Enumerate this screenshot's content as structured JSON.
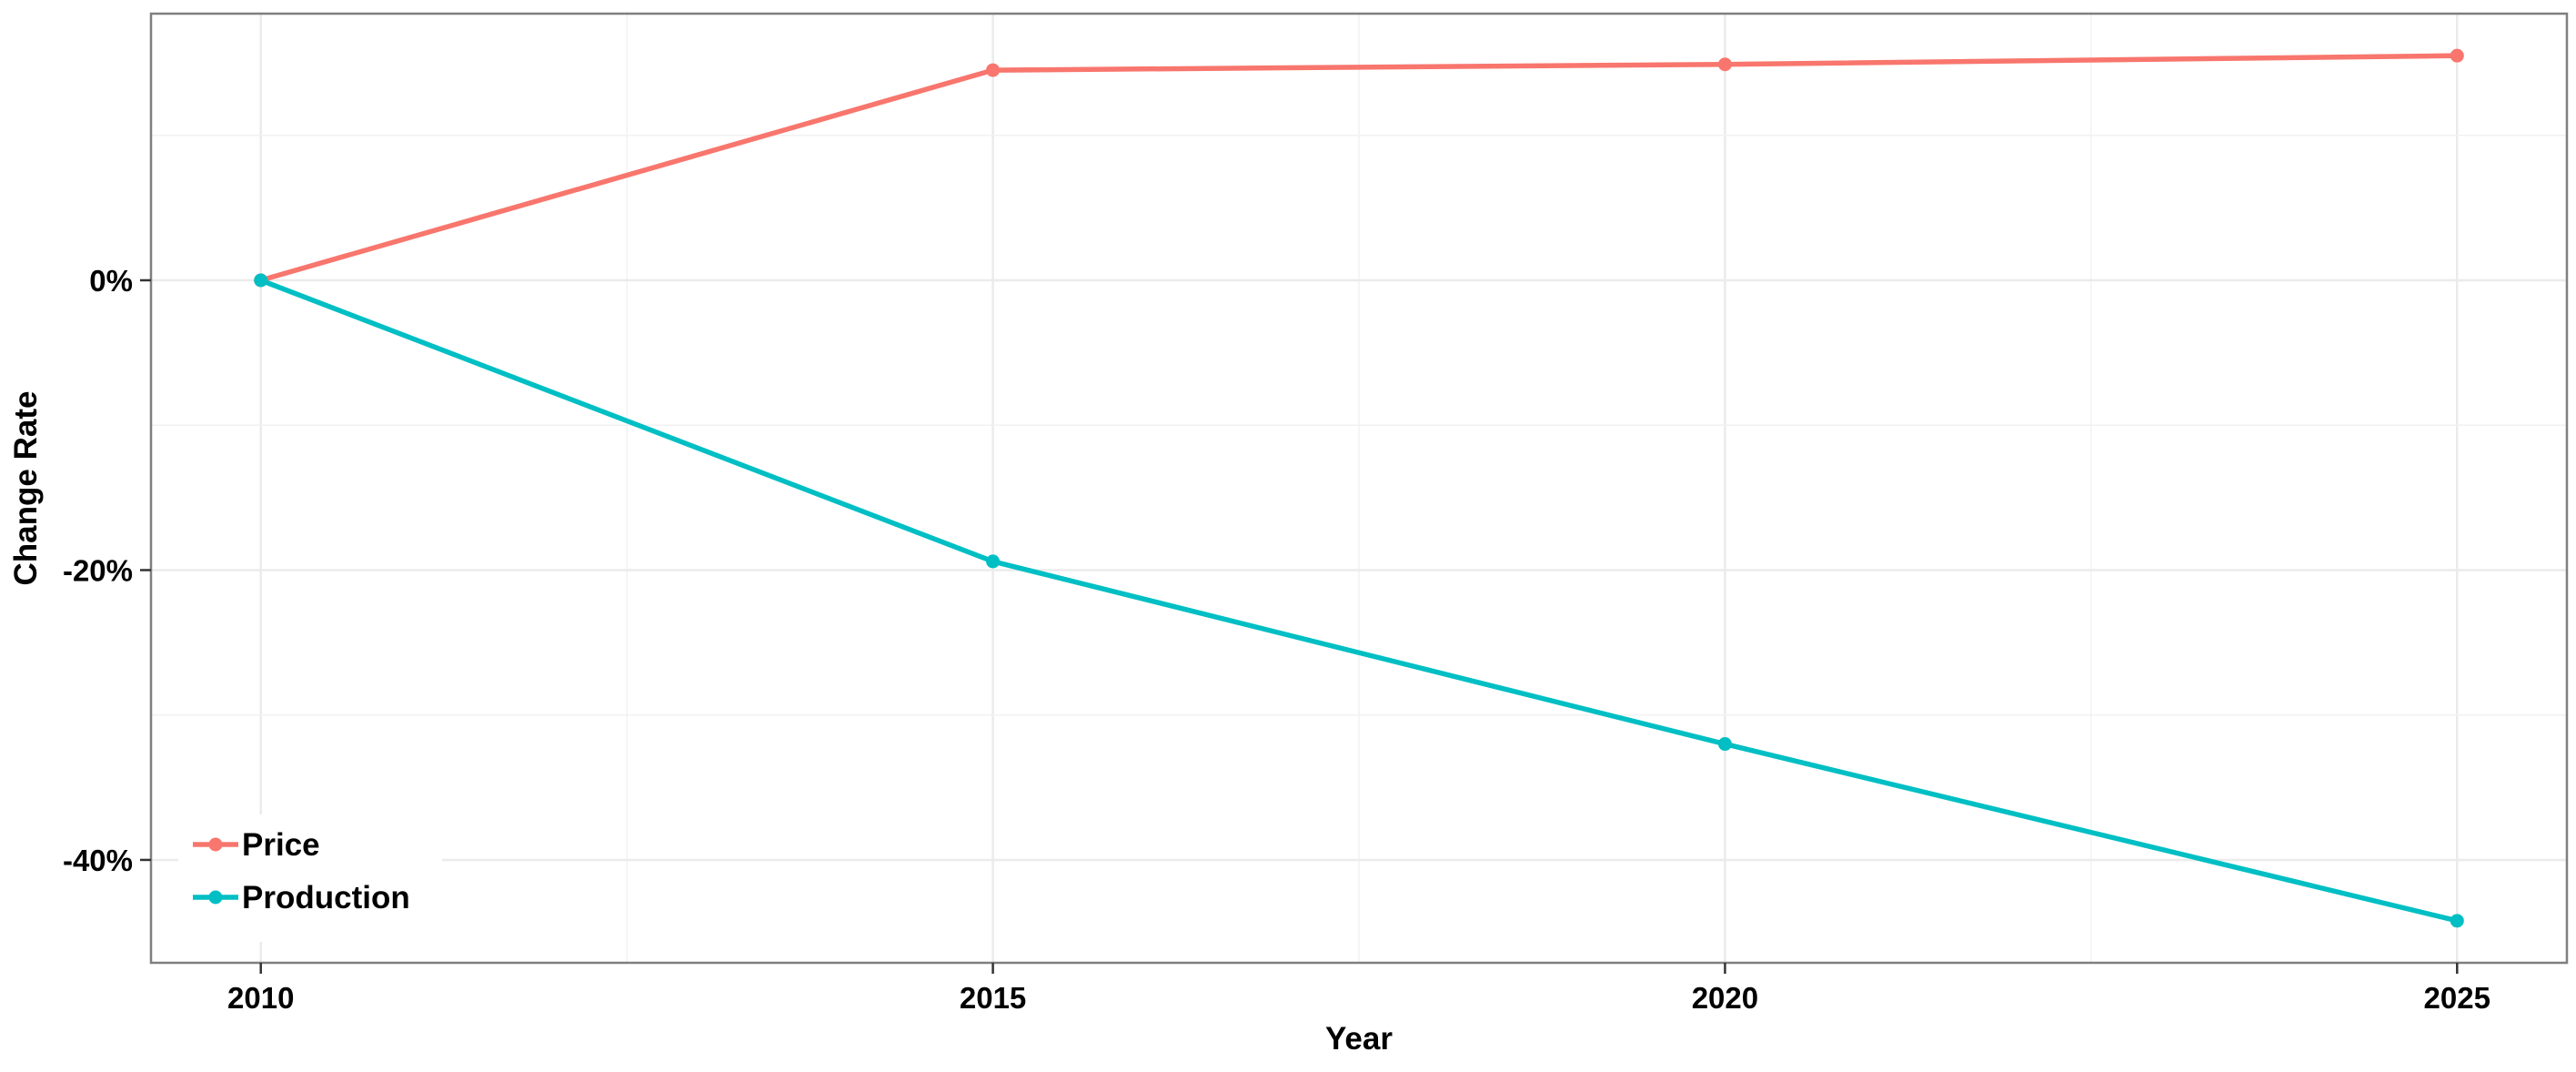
{
  "chart_data": {
    "type": "line",
    "title": "",
    "xlabel": "Year",
    "ylabel": "Change Rate",
    "x": [
      2010,
      2015,
      2020,
      2025
    ],
    "x_ticks": [
      2010,
      2015,
      2020,
      2025
    ],
    "x_tick_labels": [
      "2010",
      "2015",
      "2020",
      "2025"
    ],
    "xlim": [
      2009.25,
      2025.75
    ],
    "y_ticks": [
      0,
      -20,
      -40
    ],
    "y_tick_labels": [
      "0%",
      "-20%",
      "-40%"
    ],
    "ylim": [
      -47.1,
      18.4
    ],
    "y_unit": "%",
    "grid": true,
    "legend_position": "bottom-left",
    "series": [
      {
        "name": "Price",
        "color": "#f8766d",
        "values": [
          0,
          14.5,
          14.9,
          15.5
        ]
      },
      {
        "name": "Production",
        "color": "#00bfc4",
        "values": [
          0,
          -19.4,
          -32,
          -44.2
        ]
      }
    ]
  }
}
